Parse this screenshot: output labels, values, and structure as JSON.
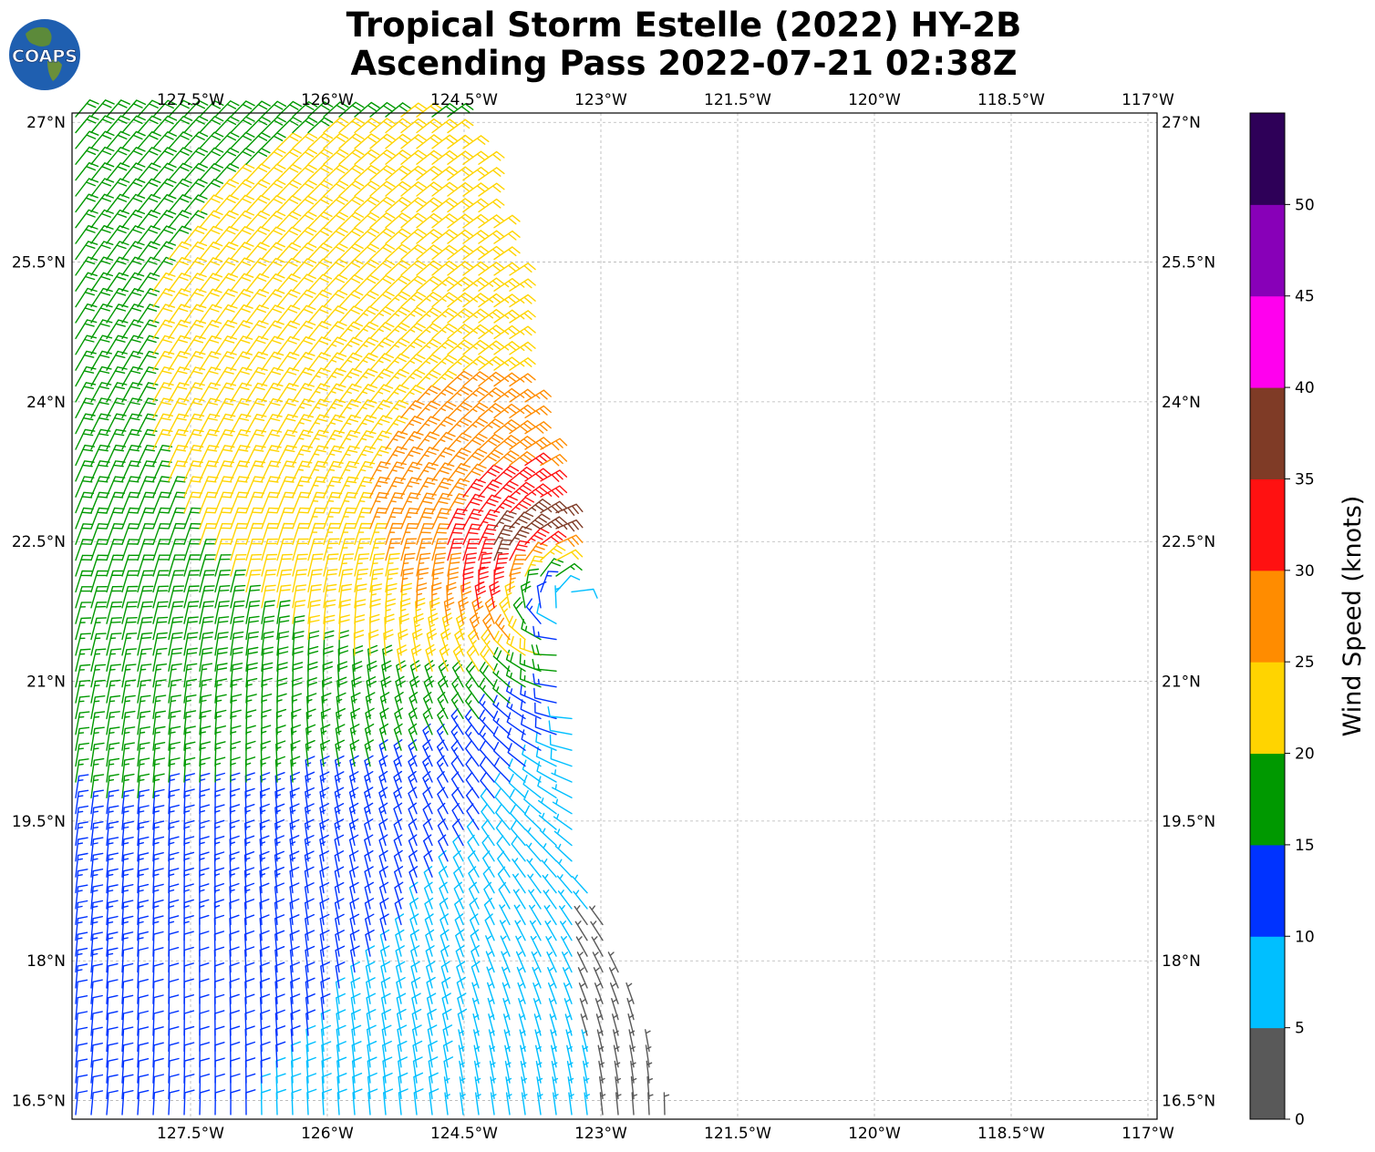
{
  "title": {
    "line1": "Tropical Storm Estelle (2022) HY-2B",
    "line2": "Ascending Pass 2022-07-21 02:38Z"
  },
  "logo": {
    "text": "COAPS",
    "icon": "globe-logo-icon"
  },
  "map": {
    "lon_range": [
      -128.8,
      -116.9
    ],
    "lat_range": [
      16.3,
      27.1
    ],
    "lon_ticks": [
      -127.5,
      -126,
      -124.5,
      -123,
      -121.5,
      -120,
      -118.5,
      -117
    ],
    "lon_tick_labels": [
      "127.5°W",
      "126°W",
      "124.5°W",
      "123°W",
      "121.5°W",
      "120°W",
      "118.5°W",
      "117°W"
    ],
    "lat_ticks": [
      27,
      25.5,
      24,
      22.5,
      21,
      19.5,
      18,
      16.5
    ],
    "lat_tick_labels": [
      "27°N",
      "25.5°N",
      "24°N",
      "22.5°N",
      "21°N",
      "19.5°N",
      "18°N",
      "16.5°N"
    ],
    "grid": true,
    "swath": {
      "west_lon": -128.8,
      "east_edge_lon_by_lat": [
        [
          16.5,
          -122.3
        ],
        [
          17.0,
          -122.4
        ],
        [
          17.5,
          -122.6
        ],
        [
          18.0,
          -122.8
        ],
        [
          18.5,
          -123.0
        ],
        [
          19.0,
          -123.2
        ],
        [
          19.5,
          -123.3
        ],
        [
          20.0,
          -123.3
        ],
        [
          20.5,
          -123.3
        ],
        [
          21.0,
          -123.4
        ],
        [
          21.5,
          -123.5
        ],
        [
          22.0,
          -123.3
        ],
        [
          22.5,
          -123.4
        ],
        [
          23.0,
          -123.5
        ],
        [
          23.5,
          -123.6
        ],
        [
          24.0,
          -123.8
        ],
        [
          24.5,
          -123.9
        ],
        [
          25.0,
          -124.0
        ],
        [
          25.5,
          -124.0
        ],
        [
          26.0,
          -124.2
        ],
        [
          26.5,
          -124.3
        ],
        [
          27.0,
          -124.6
        ]
      ],
      "spacing_deg": 0.17
    },
    "storm_center": {
      "lon": -123.5,
      "lat": 22.0
    },
    "ambient_wind_direction_deg": 45
  },
  "colorbar": {
    "label": "Wind Speed (knots)",
    "ticks": [
      "0",
      "5",
      "10",
      "15",
      "20",
      "25",
      "30",
      "35",
      "40",
      "45",
      "50"
    ],
    "bounds": [
      0,
      5,
      10,
      15,
      20,
      25,
      30,
      35,
      40,
      45,
      50,
      55
    ],
    "colors": [
      "#595959",
      "#00bfff",
      "#0033ff",
      "#009900",
      "#ffd400",
      "#ff8c00",
      "#ff1111",
      "#7f3b26",
      "#ff00ee",
      "#8800b8",
      "#2e0058"
    ]
  }
}
